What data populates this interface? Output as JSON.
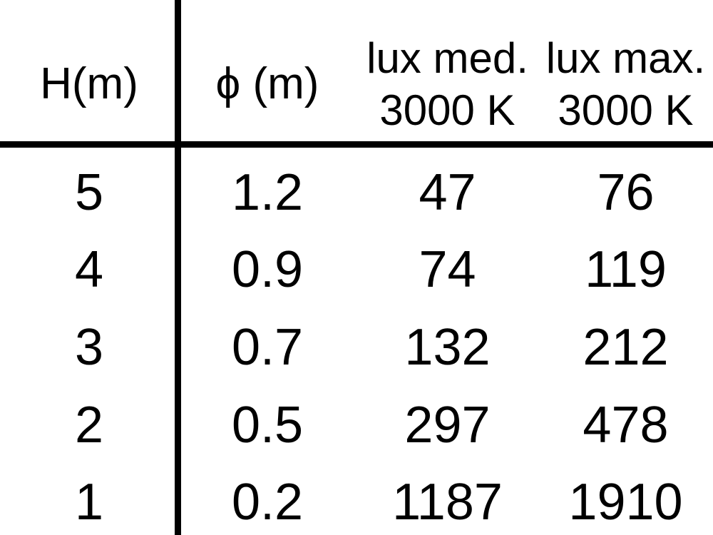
{
  "chart_data": {
    "type": "table",
    "columns": [
      {
        "label": "H(m)",
        "sublabel": ""
      },
      {
        "label": "ϕ (m)",
        "sublabel": ""
      },
      {
        "label": "lux med.",
        "sublabel": "3000 K"
      },
      {
        "label": "lux max.",
        "sublabel": "3000 K"
      }
    ],
    "rows": [
      [
        "5",
        "1.2",
        "47",
        "76"
      ],
      [
        "4",
        "0.9",
        "74",
        "119"
      ],
      [
        "3",
        "0.7",
        "132",
        "212"
      ],
      [
        "2",
        "0.5",
        "297",
        "478"
      ],
      [
        "1",
        "0.2",
        "1187",
        "1910"
      ]
    ],
    "layout": {
      "divider_after_column": "H(m)",
      "header_rule": true,
      "grid": "off"
    }
  },
  "colors": {
    "text": "#000000",
    "rule_lines": "#000000",
    "background": "#ffffff"
  }
}
